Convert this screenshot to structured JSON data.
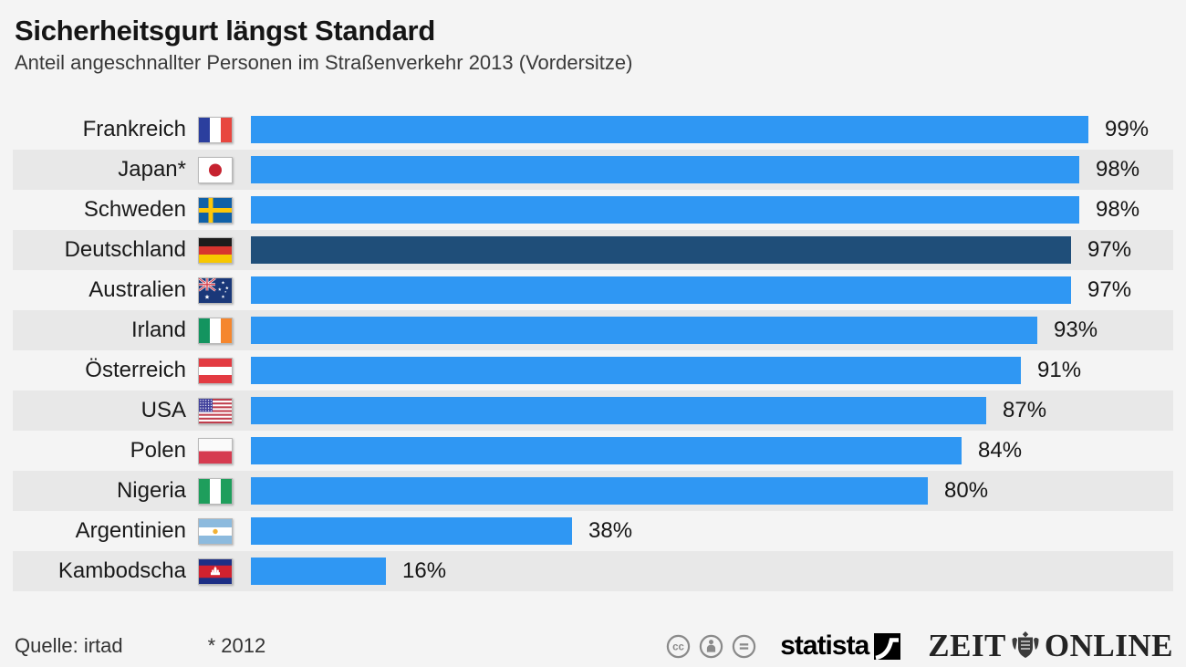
{
  "header": {
    "title": "Sicherheitsgurt längst Standard",
    "subtitle": "Anteil angeschnallter Personen im Straßenverkehr 2013 (Vordersitze)"
  },
  "footer": {
    "source": "Quelle: irtad",
    "footnote": "* 2012",
    "license_icons": [
      "cc-icon",
      "cc-by-icon",
      "cc-nd-icon"
    ],
    "statista_logo_text": "statista",
    "zeit_logo_left": "ZEIT",
    "zeit_logo_right": "ONLINE"
  },
  "colors": {
    "background": "#f4f4f4",
    "row_stripe": "#e8e8e8",
    "bar": "#2f97f3",
    "bar_highlight": "#1f4e79"
  },
  "chart_data": {
    "type": "bar",
    "orientation": "horizontal",
    "title": "Sicherheitsgurt längst Standard",
    "subtitle": "Anteil angeschnallter Personen im Straßenverkehr 2013 (Vordersitze)",
    "unit": "%",
    "xlim": [
      0,
      100
    ],
    "source": "irtad",
    "footnote": "* 2012",
    "highlighted_category": "Deutschland",
    "categories": [
      "Frankreich",
      "Japan*",
      "Schweden",
      "Deutschland",
      "Australien",
      "Irland",
      "Österreich",
      "USA",
      "Polen",
      "Nigeria",
      "Argentinien",
      "Kambodscha"
    ],
    "values": [
      99,
      98,
      98,
      97,
      97,
      93,
      91,
      87,
      84,
      80,
      38,
      16
    ],
    "rows": [
      {
        "label": "Frankreich",
        "flag": "france",
        "value": 99,
        "display": "99%",
        "highlight": false
      },
      {
        "label": "Japan*",
        "flag": "japan",
        "value": 98,
        "display": "98%",
        "highlight": false
      },
      {
        "label": "Schweden",
        "flag": "sweden",
        "value": 98,
        "display": "98%",
        "highlight": false
      },
      {
        "label": "Deutschland",
        "flag": "germany",
        "value": 97,
        "display": "97%",
        "highlight": true
      },
      {
        "label": "Australien",
        "flag": "australia",
        "value": 97,
        "display": "97%",
        "highlight": false
      },
      {
        "label": "Irland",
        "flag": "ireland",
        "value": 93,
        "display": "93%",
        "highlight": false
      },
      {
        "label": "Österreich",
        "flag": "austria",
        "value": 91,
        "display": "91%",
        "highlight": false
      },
      {
        "label": "USA",
        "flag": "usa",
        "value": 87,
        "display": "87%",
        "highlight": false
      },
      {
        "label": "Polen",
        "flag": "poland",
        "value": 84,
        "display": "84%",
        "highlight": false
      },
      {
        "label": "Nigeria",
        "flag": "nigeria",
        "value": 80,
        "display": "80%",
        "highlight": false
      },
      {
        "label": "Argentinien",
        "flag": "argentina",
        "value": 38,
        "display": "38%",
        "highlight": false
      },
      {
        "label": "Kambodscha",
        "flag": "cambodia",
        "value": 16,
        "display": "16%",
        "highlight": false
      }
    ]
  }
}
